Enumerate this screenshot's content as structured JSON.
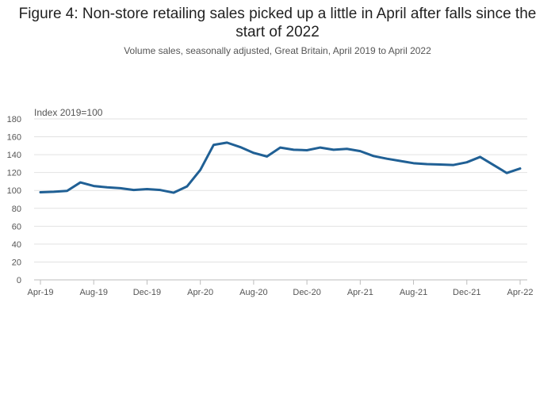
{
  "header": {
    "title": "Figure 4: Non-store retailing sales picked up a little in April after falls since the start of 2022",
    "subtitle": "Volume sales, seasonally adjusted, Great Britain, April 2019 to April 2022"
  },
  "colors": {
    "series": "#206095",
    "grid": "#e2e2e2",
    "axis_text": "#555555"
  },
  "chart_data": {
    "type": "line",
    "title": "Figure 4: Non-store retailing sales picked up a little in April after falls since the start of 2022",
    "subtitle": "Volume sales, seasonally adjusted, Great Britain, April 2019 to April 2022",
    "ylabel": "Index 2019=100",
    "xlabel": "",
    "ylim": [
      0,
      180
    ],
    "yticks": [
      0,
      20,
      40,
      60,
      80,
      100,
      120,
      140,
      160,
      180
    ],
    "xtick_labels": [
      "Apr-19",
      "Aug-19",
      "Dec-19",
      "Apr-20",
      "Aug-20",
      "Dec-20",
      "Apr-21",
      "Aug-21",
      "Dec-21",
      "Apr-22"
    ],
    "xtick_index": [
      0,
      4,
      8,
      12,
      16,
      20,
      24,
      28,
      32,
      36
    ],
    "grid": true,
    "legend": "none",
    "x": [
      "Apr-19",
      "May-19",
      "Jun-19",
      "Jul-19",
      "Aug-19",
      "Sep-19",
      "Oct-19",
      "Nov-19",
      "Dec-19",
      "Jan-20",
      "Feb-20",
      "Mar-20",
      "Apr-20",
      "May-20",
      "Jun-20",
      "Jul-20",
      "Aug-20",
      "Sep-20",
      "Oct-20",
      "Nov-20",
      "Dec-20",
      "Jan-21",
      "Feb-21",
      "Mar-21",
      "Apr-21",
      "May-21",
      "Jun-21",
      "Jul-21",
      "Aug-21",
      "Sep-21",
      "Oct-21",
      "Nov-21",
      "Dec-21",
      "Jan-22",
      "Feb-22",
      "Mar-22",
      "Apr-22"
    ],
    "series": [
      {
        "values": [
          98,
          98.5,
          99.5,
          109,
          105,
          103.5,
          102.5,
          100.5,
          101.5,
          100.5,
          97.5,
          104.5,
          123,
          151,
          153.5,
          148.5,
          142,
          138,
          148,
          145.5,
          145,
          148,
          145.5,
          146.5,
          144,
          138.5,
          135.5,
          133,
          130.5,
          129.5,
          129,
          128.5,
          131.5,
          137.5,
          128.5,
          119.5,
          124.5
        ]
      }
    ]
  }
}
